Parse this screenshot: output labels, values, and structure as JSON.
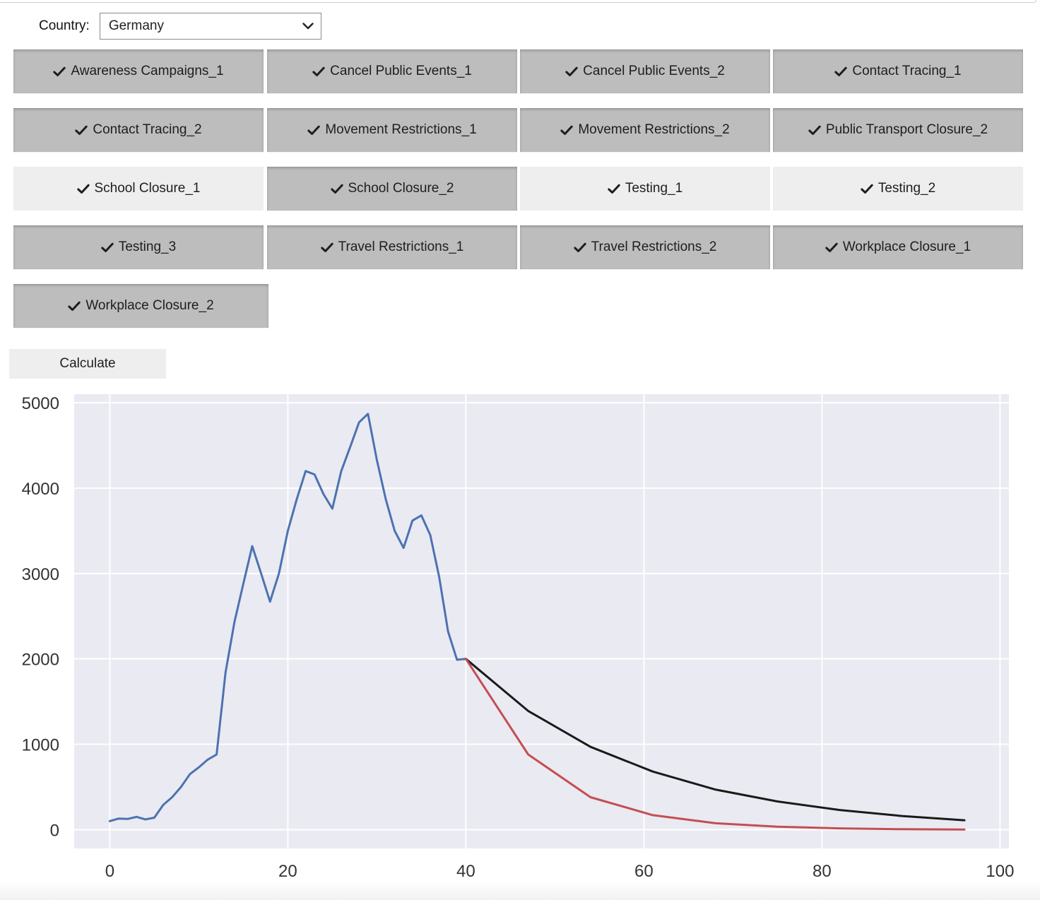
{
  "country": {
    "label": "Country:",
    "selected": "Germany"
  },
  "toggles": [
    {
      "label": "Awareness Campaigns_1",
      "active": true
    },
    {
      "label": "Cancel Public Events_1",
      "active": true
    },
    {
      "label": "Cancel Public Events_2",
      "active": true
    },
    {
      "label": "Contact Tracing_1",
      "active": true
    },
    {
      "label": "Contact Tracing_2",
      "active": true
    },
    {
      "label": "Movement Restrictions_1",
      "active": true
    },
    {
      "label": "Movement Restrictions_2",
      "active": true
    },
    {
      "label": "Public Transport Closure_2",
      "active": true
    },
    {
      "label": "School Closure_1",
      "active": false
    },
    {
      "label": "School Closure_2",
      "active": true
    },
    {
      "label": "Testing_1",
      "active": false
    },
    {
      "label": "Testing_2",
      "active": false
    },
    {
      "label": "Testing_3",
      "active": true
    },
    {
      "label": "Travel Restrictions_1",
      "active": true
    },
    {
      "label": "Travel Restrictions_2",
      "active": true
    },
    {
      "label": "Workplace Closure_1",
      "active": true
    },
    {
      "label": "Workplace Closure_2",
      "active": true
    }
  ],
  "calculate_label": "Calculate",
  "chart_data": {
    "type": "line",
    "title": "",
    "xlabel": "",
    "ylabel": "",
    "xlim": [
      -4,
      101
    ],
    "ylim": [
      -220,
      5100
    ],
    "xticks": [
      0,
      20,
      40,
      60,
      80,
      100
    ],
    "yticks": [
      0,
      1000,
      2000,
      3000,
      4000,
      5000
    ],
    "grid": true,
    "colors": {
      "background": "#eaeaf2",
      "grid": "#ffffff"
    },
    "series": [
      {
        "color": "#4c72b0",
        "x": [
          0,
          1,
          2,
          3,
          4,
          5,
          6,
          7,
          8,
          9,
          10,
          11,
          12,
          13,
          14,
          15,
          16,
          17,
          18,
          19,
          20,
          21,
          22,
          23,
          24,
          25,
          26,
          27,
          28,
          29,
          30,
          31,
          32,
          33,
          34,
          35,
          36,
          37,
          38,
          39,
          40
        ],
        "y": [
          100,
          130,
          125,
          150,
          120,
          140,
          290,
          380,
          500,
          650,
          730,
          820,
          880,
          1840,
          2430,
          2880,
          3320,
          3000,
          2670,
          3000,
          3500,
          3870,
          4200,
          4160,
          3930,
          3760,
          4200,
          4480,
          4770,
          4870,
          4330,
          3870,
          3500,
          3300,
          3620,
          3680,
          3450,
          2960,
          2320,
          1990,
          2000
        ]
      },
      {
        "color": "#1a1a1a",
        "x": [
          40,
          47,
          54,
          61,
          68,
          75,
          82,
          89,
          96
        ],
        "y": [
          2000,
          1390,
          970,
          680,
          470,
          330,
          230,
          160,
          110
        ]
      },
      {
        "color": "#c44e52",
        "x": [
          40,
          47,
          54,
          61,
          68,
          75,
          82,
          89,
          96
        ],
        "y": [
          2000,
          880,
          380,
          170,
          75,
          35,
          15,
          5,
          2
        ]
      }
    ]
  }
}
